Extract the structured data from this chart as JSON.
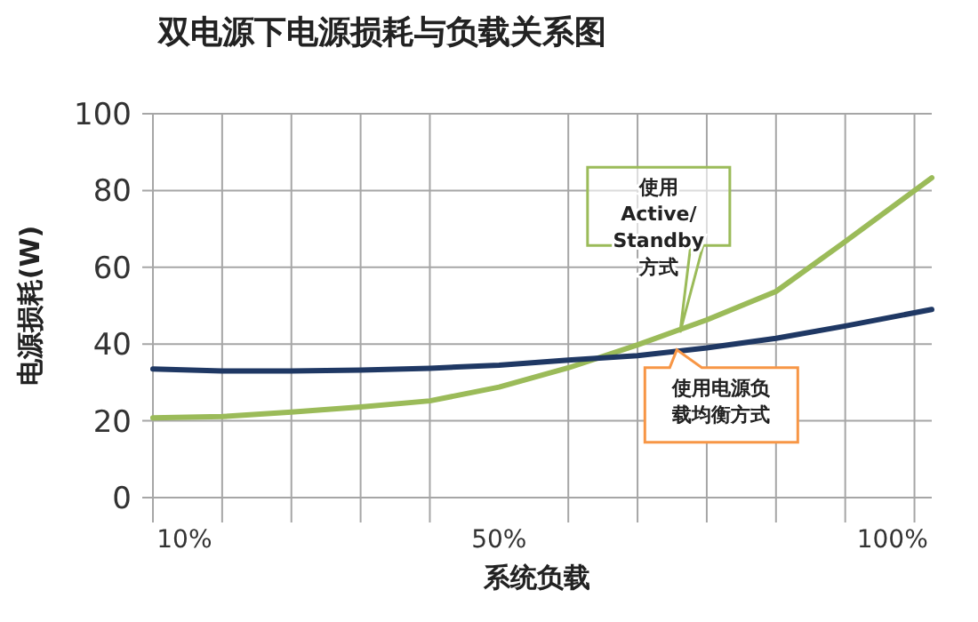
{
  "chart_data": {
    "type": "line",
    "title": "双电源下电源损耗与负载关系图",
    "xlabel": "系统负载",
    "ylabel": "电源损耗(W)",
    "x": [
      6,
      14.8,
      23.6,
      32.4,
      41.2,
      50,
      58.8,
      67.6,
      76.4,
      85.2,
      94,
      105
    ],
    "series": [
      {
        "color": "#9bbb59",
        "values": [
          20.8,
          21.1,
          22.3,
          23.6,
          25.2,
          28.8,
          33.8,
          39.8,
          46.3,
          53.7,
          66.7,
          83.3
        ]
      },
      {
        "color": "#1f3864",
        "values": [
          33.5,
          33,
          33,
          33.2,
          33.7,
          34.5,
          35.8,
          37,
          39,
          41.5,
          44.7,
          49
        ]
      }
    ],
    "annotations": [
      {
        "text": "使用Active/Standby方式",
        "x": 73,
        "y": 43
      },
      {
        "text": "使用电源负载均衡方式",
        "x": 72.6,
        "y": 38.5
      }
    ],
    "xlim": [
      6,
      105
    ],
    "ylim": [
      0,
      100
    ],
    "xticks": [
      {
        "value": 6,
        "label": null
      },
      {
        "value": 10,
        "label": "10%"
      },
      {
        "value": 14.8,
        "label": null
      },
      {
        "value": 23.6,
        "label": null
      },
      {
        "value": 32.4,
        "label": null
      },
      {
        "value": 41.2,
        "label": null
      },
      {
        "value": 50,
        "label": "50%"
      },
      {
        "value": 58.8,
        "label": null
      },
      {
        "value": 67.6,
        "label": null
      },
      {
        "value": 76.4,
        "label": null
      },
      {
        "value": 85.2,
        "label": null
      },
      {
        "value": 94,
        "label": null
      },
      {
        "value": 100,
        "label": "100%"
      },
      {
        "value": 102.8,
        "label": null
      }
    ],
    "yticks": [
      0,
      20,
      40,
      60,
      80,
      100
    ],
    "grid": true,
    "marker": "none",
    "line_style": "solid"
  }
}
